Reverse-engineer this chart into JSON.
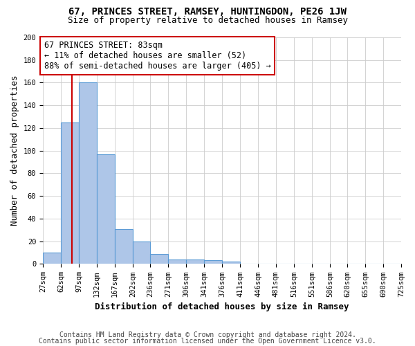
{
  "title": "67, PRINCES STREET, RAMSEY, HUNTINGDON, PE26 1JW",
  "subtitle": "Size of property relative to detached houses in Ramsey",
  "xlabel": "Distribution of detached houses by size in Ramsey",
  "ylabel": "Number of detached properties",
  "footnote1": "Contains HM Land Registry data © Crown copyright and database right 2024.",
  "footnote2": "Contains public sector information licensed under the Open Government Licence v3.0.",
  "bin_edges": [
    27,
    62,
    97,
    132,
    167,
    202,
    236,
    271,
    306,
    341,
    376,
    411,
    446,
    481,
    516,
    551,
    586,
    620,
    655,
    690,
    725
  ],
  "bar_heights": [
    10,
    125,
    160,
    97,
    31,
    20,
    9,
    4,
    4,
    3,
    2,
    0,
    0,
    0,
    0,
    0,
    0,
    0,
    0,
    0
  ],
  "bar_color": "#aec6e8",
  "bar_edge_color": "#5b9bd5",
  "vline_x": 83,
  "vline_color": "#cc0000",
  "annotation_text": "67 PRINCES STREET: 83sqm\n← 11% of detached houses are smaller (52)\n88% of semi-detached houses are larger (405) →",
  "annotation_box_color": "#ffffff",
  "annotation_box_edge_color": "#cc0000",
  "ylim": [
    0,
    200
  ],
  "yticks": [
    0,
    20,
    40,
    60,
    80,
    100,
    120,
    140,
    160,
    180,
    200
  ],
  "grid_color": "#cccccc",
  "background_color": "#ffffff",
  "title_fontsize": 10,
  "subtitle_fontsize": 9,
  "label_fontsize": 9,
  "tick_fontsize": 7.5,
  "annotation_fontsize": 8.5,
  "footnote_fontsize": 7
}
